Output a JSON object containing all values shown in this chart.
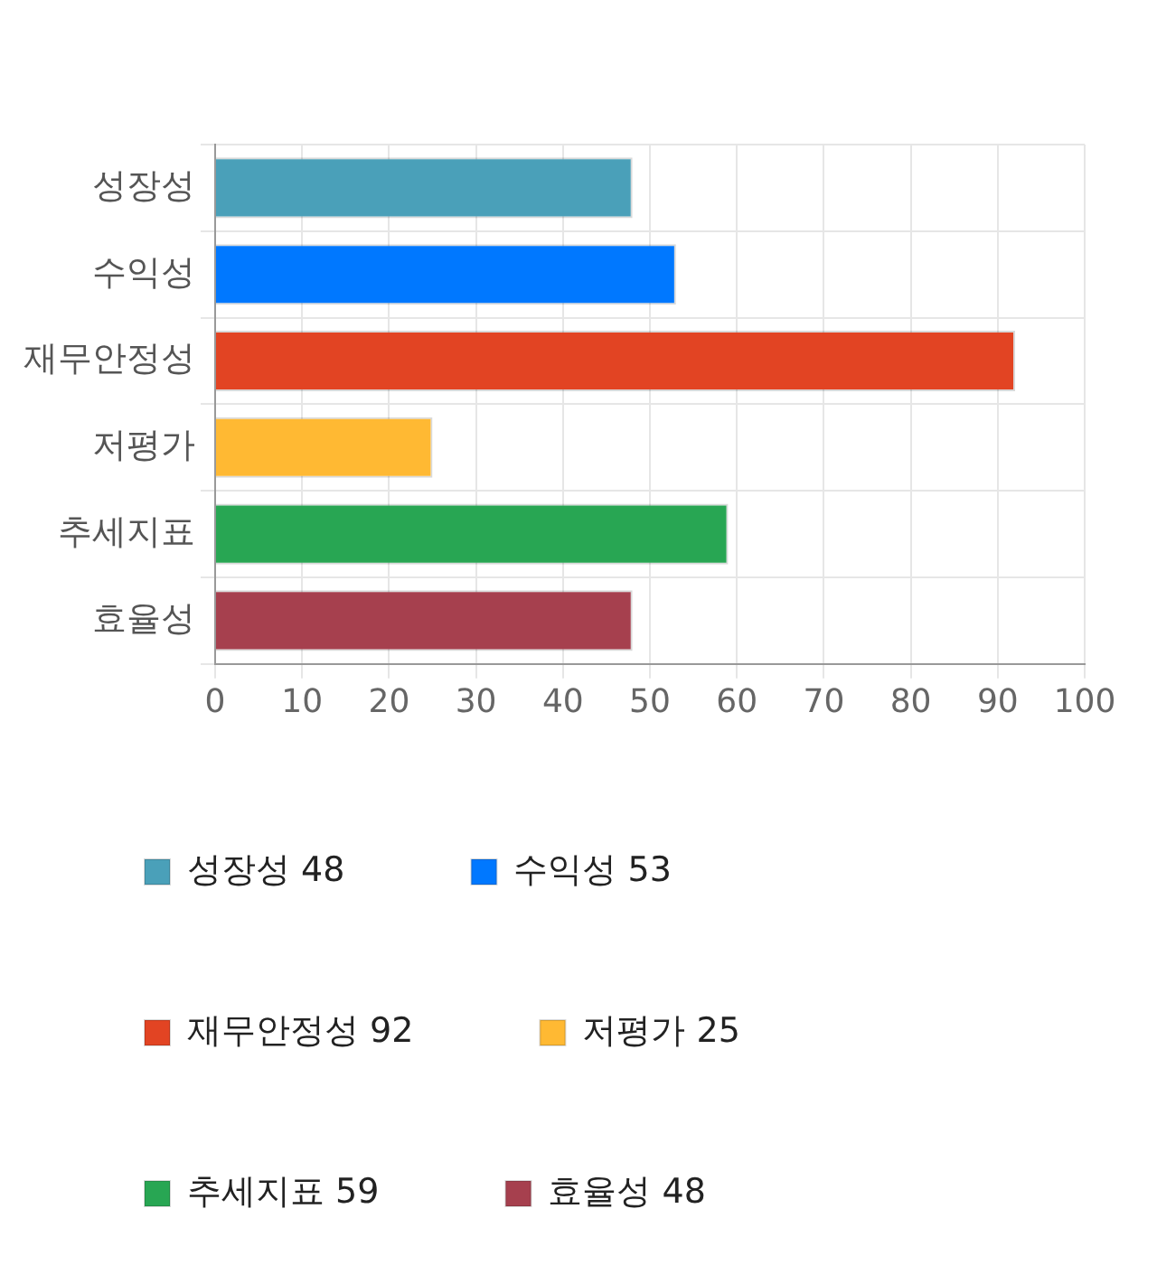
{
  "chart_data": {
    "type": "bar",
    "orientation": "horizontal",
    "stacked": true,
    "categories": [
      "성장성",
      "수익성",
      "재무안정성",
      "저평가",
      "추세지표",
      "효율성"
    ],
    "series": [
      {
        "name": "성장성 48",
        "color": "#4aa0b9",
        "values": [
          48,
          null,
          null,
          null,
          null,
          null
        ]
      },
      {
        "name": "수익성 53",
        "color": "#0078ff",
        "values": [
          null,
          53,
          null,
          null,
          null,
          null
        ]
      },
      {
        "name": "재무안정성 92",
        "color": "#e24423",
        "values": [
          null,
          null,
          92,
          null,
          null,
          null
        ]
      },
      {
        "name": "저평가 25",
        "color": "#ffb933",
        "values": [
          null,
          null,
          null,
          25,
          null,
          null
        ]
      },
      {
        "name": "추세지표 59",
        "color": "#28a653",
        "values": [
          null,
          null,
          null,
          null,
          59,
          null
        ]
      },
      {
        "name": "효율성 48",
        "color": "#a6404e",
        "values": [
          null,
          null,
          null,
          null,
          null,
          48
        ]
      }
    ],
    "xlim": [
      0,
      100
    ],
    "xticks": [
      0,
      10,
      20,
      30,
      40,
      50,
      60,
      70,
      80,
      90,
      100
    ],
    "grid": true,
    "legend": "bottom"
  }
}
